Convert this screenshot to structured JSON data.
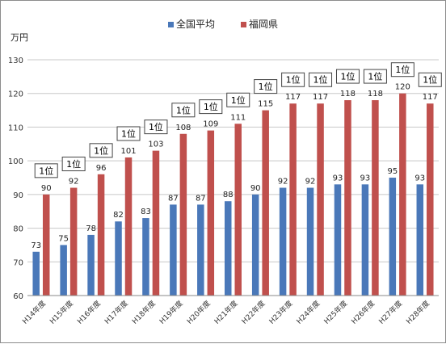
{
  "chart_data": {
    "type": "bar",
    "unit_label": "万円",
    "categories": [
      "H14年度",
      "H15年度",
      "H16年度",
      "H17年度",
      "H18年度",
      "H19年度",
      "H20年度",
      "H21年度",
      "H22年度",
      "H23年度",
      "H24年度",
      "H25年度",
      "H26年度",
      "H27年度",
      "H28年度"
    ],
    "series": [
      {
        "name": "全国平均",
        "color": "#4a78b9",
        "values": [
          73,
          75,
          78,
          82,
          83,
          87,
          87,
          88,
          90,
          92,
          92,
          93,
          93,
          95,
          93
        ]
      },
      {
        "name": "福岡県",
        "color": "#c0504d",
        "values": [
          90,
          92,
          96,
          101,
          103,
          108,
          109,
          111,
          115,
          117,
          117,
          118,
          118,
          120,
          117
        ]
      }
    ],
    "rank_label": "1位",
    "ylim": [
      60,
      130
    ],
    "yticks": [
      60,
      70,
      80,
      90,
      100,
      110,
      120,
      130
    ],
    "grid": true,
    "legend_position": "top-center"
  }
}
